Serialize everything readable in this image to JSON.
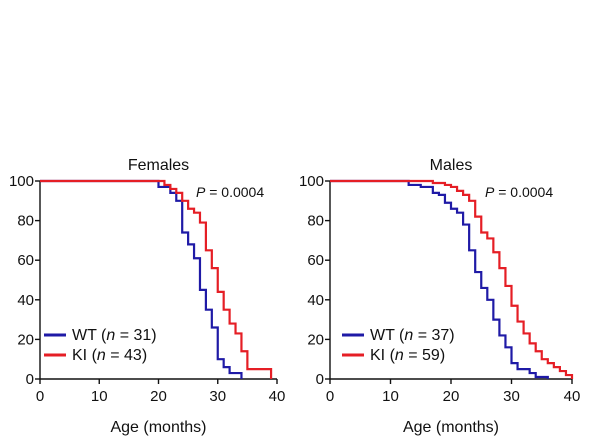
{
  "colors": {
    "wt": "#1f1aa6",
    "ki": "#e51e25",
    "axis": "#111111"
  },
  "chart_data": [
    {
      "type": "line",
      "step": true,
      "title": "Females",
      "xlabel": "Age (months)",
      "ylabel": "",
      "xlim": [
        0,
        40
      ],
      "ylim": [
        0,
        100
      ],
      "xticks": [
        0,
        10,
        20,
        30,
        40
      ],
      "yticks": [
        0,
        20,
        40,
        60,
        80,
        100
      ],
      "pvalue": {
        "label": "P",
        "text": " = 0.0004"
      },
      "legend_position": "bottom-left",
      "series": [
        {
          "name": "WT",
          "n_label": "n",
          "n_text": " = 31)",
          "color": "#1f1aa6",
          "x": [
            0,
            19,
            20,
            22,
            23,
            24,
            25,
            26,
            27,
            28,
            29,
            30,
            31,
            32,
            34
          ],
          "y": [
            100,
            100,
            97,
            94,
            90,
            74,
            68,
            61,
            45,
            35,
            26,
            10,
            6,
            3,
            0
          ]
        },
        {
          "name": "KI",
          "n_label": "n",
          "n_text": " = 43)",
          "color": "#e51e25",
          "x": [
            0,
            20,
            21,
            22,
            23,
            24,
            25,
            26,
            27,
            28,
            29,
            30,
            31,
            32,
            33,
            34,
            35,
            39
          ],
          "y": [
            100,
            100,
            98,
            96,
            94,
            90,
            86,
            84,
            79,
            65,
            56,
            44,
            35,
            28,
            23,
            14,
            5,
            0
          ]
        }
      ]
    },
    {
      "type": "line",
      "step": true,
      "title": "Males",
      "xlabel": "Age (months)",
      "ylabel": "",
      "xlim": [
        0,
        40
      ],
      "ylim": [
        0,
        100
      ],
      "xticks": [
        0,
        10,
        20,
        30,
        40
      ],
      "yticks": [
        0,
        20,
        40,
        60,
        80,
        100
      ],
      "pvalue": {
        "label": "P",
        "text": " = 0.0004"
      },
      "legend_position": "bottom-left",
      "series": [
        {
          "name": "WT",
          "n_label": "n",
          "n_text": " = 37)",
          "color": "#1f1aa6",
          "x": [
            0,
            12,
            13,
            15,
            17,
            18,
            19,
            20,
            21,
            22,
            23,
            24,
            25,
            26,
            27,
            28,
            29,
            30,
            31,
            33,
            34,
            36
          ],
          "y": [
            100,
            100,
            98,
            97,
            94,
            93,
            89,
            86,
            84,
            78,
            65,
            54,
            46,
            40,
            30,
            22,
            16,
            8,
            5,
            3,
            1,
            0
          ]
        },
        {
          "name": "KI",
          "n_label": "n",
          "n_text": " = 59)",
          "color": "#e51e25",
          "x": [
            0,
            15,
            17,
            19,
            20,
            21,
            22,
            23,
            24,
            25,
            26,
            27,
            28,
            29,
            30,
            31,
            32,
            33,
            34,
            35,
            36,
            37,
            38,
            39,
            40
          ],
          "y": [
            100,
            100,
            99,
            98,
            97,
            95,
            93,
            90,
            82,
            74,
            71,
            64,
            56,
            47,
            37,
            29,
            23,
            18,
            14,
            10,
            8,
            6,
            4,
            2,
            0
          ]
        }
      ]
    }
  ]
}
